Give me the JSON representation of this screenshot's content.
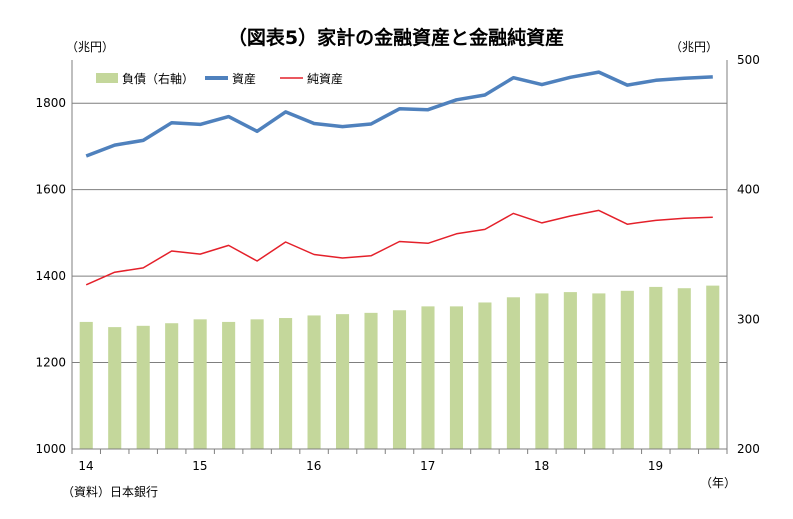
{
  "chart_data": {
    "type": "bar+line",
    "title": "（図表5）家計の金融資産と金融純資産",
    "left_axis_unit": "（兆円）",
    "right_axis_unit": "（兆円）",
    "x_axis_unit": "（年）",
    "source": "（資料）日本銀行",
    "left_ylim": [
      1000,
      1900
    ],
    "left_ticks": [
      1000,
      1200,
      1400,
      1600,
      1800
    ],
    "right_ylim": [
      200,
      500
    ],
    "right_ticks": [
      200,
      300,
      400,
      500
    ],
    "x_tick_labels": [
      "14",
      "15",
      "16",
      "17",
      "18",
      "19"
    ],
    "x_tick_index": [
      0,
      4,
      8,
      12,
      16,
      20
    ],
    "legend_position": "top-left",
    "grid": true,
    "series": [
      {
        "name": "負債（右軸）",
        "kind": "bar",
        "axis": "right",
        "color": "#c4d79b",
        "values": [
          298,
          294,
          295,
          297,
          300,
          298,
          300,
          301,
          303,
          304,
          305,
          307,
          310,
          310,
          313,
          317,
          320,
          321,
          320,
          322,
          325,
          324,
          326
        ]
      },
      {
        "name": "資産",
        "kind": "line",
        "axis": "left",
        "color": "#4f81bd",
        "values": [
          1678,
          1703,
          1714,
          1755,
          1751,
          1769,
          1735,
          1780,
          1753,
          1746,
          1752,
          1787,
          1785,
          1808,
          1819,
          1859,
          1843,
          1860,
          1872,
          1842,
          1853,
          1858,
          1861
        ]
      },
      {
        "name": "純資産",
        "kind": "line",
        "axis": "left",
        "color": "#e4202a",
        "values": [
          1380,
          1409,
          1419,
          1458,
          1451,
          1471,
          1435,
          1479,
          1450,
          1442,
          1447,
          1480,
          1476,
          1498,
          1508,
          1545,
          1523,
          1539,
          1552,
          1520,
          1529,
          1534,
          1536
        ]
      }
    ]
  }
}
